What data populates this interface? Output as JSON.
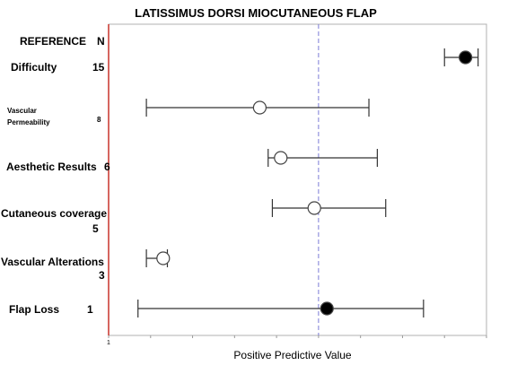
{
  "chart_data": {
    "type": "forest",
    "title": "LATISSIMUS DORSI MIOCUTANEOUS FLAP",
    "xlabel": "Positive Predictive Value",
    "header": {
      "reference": "REFERENCE",
      "n": "N"
    },
    "x_tick_label": "1",
    "xlim": [
      1,
      10
    ],
    "reference_line": 6.0,
    "rows": [
      {
        "label_lines": [
          "Difficulty"
        ],
        "n": "15",
        "small": false,
        "estimate": 9.5,
        "ci": [
          9.0,
          9.8
        ],
        "filled": true
      },
      {
        "label_lines": [
          "Vascular",
          "Permeability"
        ],
        "n": "8",
        "small": true,
        "estimate": 4.6,
        "ci": [
          1.9,
          7.2
        ],
        "filled": false
      },
      {
        "label_lines": [
          "Aesthetic Results"
        ],
        "n": "6",
        "small": false,
        "estimate": 5.1,
        "ci": [
          4.8,
          7.4
        ],
        "filled": false
      },
      {
        "label_lines": [
          "Cutaneous coverage"
        ],
        "n": "5",
        "small": false,
        "estimate": 5.9,
        "ci": [
          4.9,
          7.6
        ],
        "filled": false
      },
      {
        "label_lines": [
          "Vascular Alterations"
        ],
        "n": "3",
        "small": false,
        "estimate": 2.3,
        "ci": [
          1.9,
          2.4
        ],
        "filled": false
      },
      {
        "label_lines": [
          "Flap Loss"
        ],
        "n": "1",
        "small": false,
        "estimate": 6.2,
        "ci": [
          1.7,
          8.5
        ],
        "filled": true
      }
    ]
  }
}
